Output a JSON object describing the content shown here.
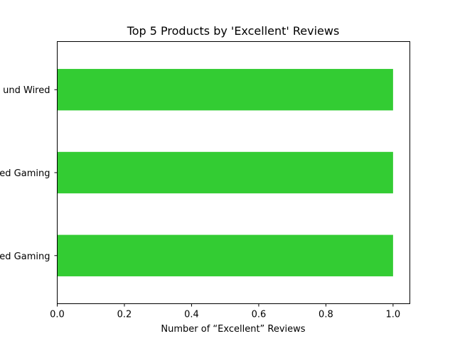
{
  "chart_data": {
    "type": "bar",
    "orientation": "horizontal",
    "title": "Top 5 Products by 'Excellent' Reviews",
    "xlabel": "Number of “Excellent” Reviews",
    "ylabel": "",
    "categories": [
      "und Wired",
      "ed Gaming",
      "ed Gaming"
    ],
    "values": [
      1.0,
      1.0,
      1.0
    ],
    "xlim": [
      0,
      1.05
    ],
    "xticks": [
      "0.0",
      "0.2",
      "0.4",
      "0.6",
      "0.8",
      "1.0"
    ],
    "bar_color": "#33cc33",
    "grid": false
  }
}
